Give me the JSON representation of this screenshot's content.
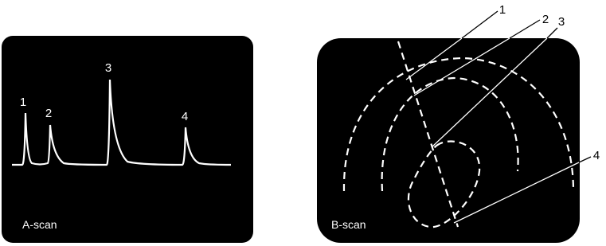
{
  "a_scan": {
    "peak_labels": [
      "1",
      "2",
      "3",
      "4"
    ],
    "caption": "A-scan"
  },
  "b_scan": {
    "interface_labels": [
      "1",
      "2",
      "3",
      "4"
    ],
    "caption": "B-scan"
  }
}
